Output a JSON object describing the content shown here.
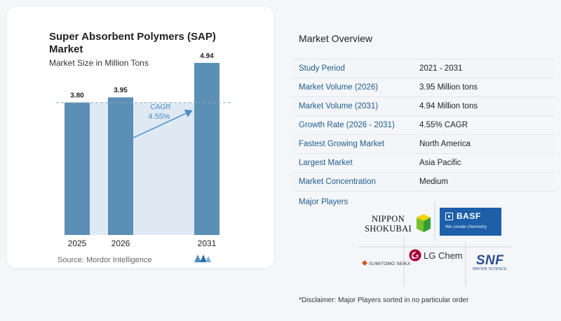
{
  "chart_card": {
    "title": "Super Absorbent Polymers (SAP) Market",
    "subtitle": "Market Size in Million Tons",
    "source": "Source: Mordor Intelligence",
    "cagr_label": "CAGR",
    "cagr_value": "4.55%"
  },
  "chart_data": {
    "type": "bar",
    "title": "Super Absorbent Polymers (SAP) Market",
    "subtitle": "Market Size in Million Tons",
    "categories": [
      "2025",
      "2026",
      "2031"
    ],
    "values": [
      3.8,
      3.95,
      4.94
    ],
    "value_labels": [
      "3.80",
      "3.95",
      "4.94"
    ],
    "ylim": [
      0,
      5.4
    ],
    "grid": false,
    "annotation": {
      "label": "CAGR",
      "value": "4.55%"
    },
    "colors": {
      "bar": "#5b8fb5",
      "band": "#dfe9f3",
      "arrow": "#4b8ec4",
      "cagr_text": "#4b8ec4"
    }
  },
  "overview": {
    "title": "Market Overview",
    "rows": [
      {
        "label": "Study Period",
        "value": "2021 - 2031"
      },
      {
        "label": "Market Volume (2026)",
        "value": "3.95 Million tons"
      },
      {
        "label": "Market Volume (2031)",
        "value": "4.94 Million tons"
      },
      {
        "label": "Growth Rate (2026 - 2031)",
        "value": "4.55% CAGR"
      },
      {
        "label": "Fastest Growing Market",
        "value": "North America"
      },
      {
        "label": "Largest Market",
        "value": "Asia Pacific"
      },
      {
        "label": "Market Concentration",
        "value": "Medium"
      }
    ],
    "players_label": "Major Players",
    "disclaimer": "*Disclaimer: Major Players sorted in no particular order"
  },
  "players": {
    "nippon_line1": "NIPPON",
    "nippon_line2": "SHOKUBAI",
    "basf_main": "BASF",
    "basf_sub": "We create chemistry",
    "sumitomo": "SUMITOMO SEIKA",
    "lgchem": "LG Chem",
    "snf_main": "SNF",
    "snf_sub": "WATER SCIENCE"
  }
}
